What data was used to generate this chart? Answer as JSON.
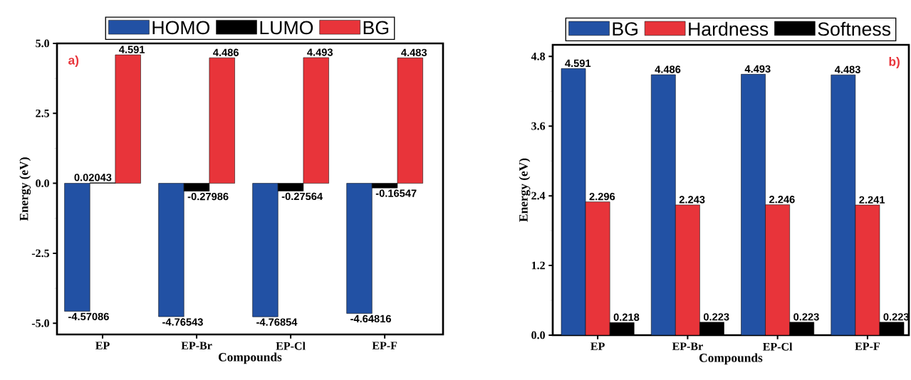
{
  "chart_data": [
    {
      "type": "bar",
      "xlabel": "Compounds",
      "ylabel": "Energy (eV)",
      "annotations": [
        "a)"
      ],
      "categories": [
        "EP",
        "EP-Br",
        "EP-Cl",
        "EP-F"
      ],
      "series": [
        {
          "name": "HOMO",
          "color": "#2251a4",
          "values": [
            -4.57086,
            -4.76543,
            -4.76854,
            -4.64816
          ]
        },
        {
          "name": "LUMO",
          "color": "#000000",
          "values": [
            0.02043,
            -0.27986,
            -0.27564,
            -0.16547
          ]
        },
        {
          "name": "BG",
          "color": "#e8343a",
          "values": [
            4.591,
            4.486,
            4.493,
            4.483
          ]
        }
      ],
      "ylim": [
        -5.4,
        5.0
      ],
      "yticks": [
        {
          "value": -5,
          "label": "-5.0"
        },
        {
          "value": -2.5,
          "label": "-2.5"
        },
        {
          "value": 0,
          "label": "0.0"
        },
        {
          "value": 2.5,
          "label": "2.5"
        },
        {
          "value": 5,
          "label": "5.0"
        }
      ],
      "legend": "top",
      "data_labels": true
    },
    {
      "type": "bar",
      "xlabel": "Compounds",
      "ylabel": "Energy (eV)",
      "annotations": [
        "b)"
      ],
      "categories": [
        "EP",
        "EP-Br",
        "EP-Cl",
        "EP-F"
      ],
      "series": [
        {
          "name": "BG",
          "color": "#2251a4",
          "values": [
            4.591,
            4.486,
            4.493,
            4.483
          ]
        },
        {
          "name": "Hardness",
          "color": "#e8343a",
          "values": [
            2.296,
            2.243,
            2.246,
            2.241
          ]
        },
        {
          "name": "Softness",
          "color": "#000000",
          "values": [
            0.218,
            0.223,
            0.223,
            0.223
          ]
        }
      ],
      "ylim": [
        0,
        5.0
      ],
      "yticks": [
        {
          "value": 0,
          "label": "0.0"
        },
        {
          "value": 1.2,
          "label": "1.2"
        },
        {
          "value": 2.4,
          "label": "2.4"
        },
        {
          "value": 3.6,
          "label": "3.6"
        },
        {
          "value": 4.8,
          "label": "4.8"
        }
      ],
      "legend": "top",
      "data_labels": true
    }
  ]
}
